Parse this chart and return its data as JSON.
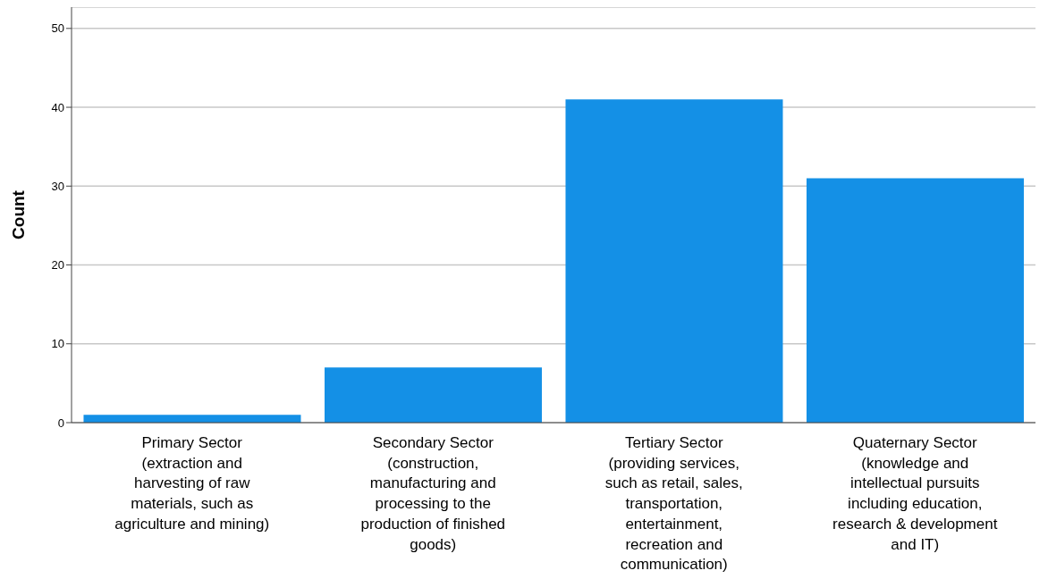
{
  "chart_data": {
    "type": "bar",
    "ylabel": "Count",
    "categories": [
      "Primary Sector (extraction and harvesting of raw materials, such as agriculture and mining)",
      "Secondary Sector (construction, manufacturing and processing to the production of finished goods)",
      "Tertiary Sector (providing services, such as retail, sales, transportation, entertainment, recreation and communication)",
      "Quaternary Sector (knowledge and intellectual pursuits including education, research & development and IT)"
    ],
    "values": [
      1,
      7,
      41,
      31
    ],
    "color": "#1490e6",
    "ylim": [
      0,
      52.7
    ],
    "yticks": [
      0,
      10,
      20,
      30,
      40,
      50
    ],
    "grid": "y"
  }
}
